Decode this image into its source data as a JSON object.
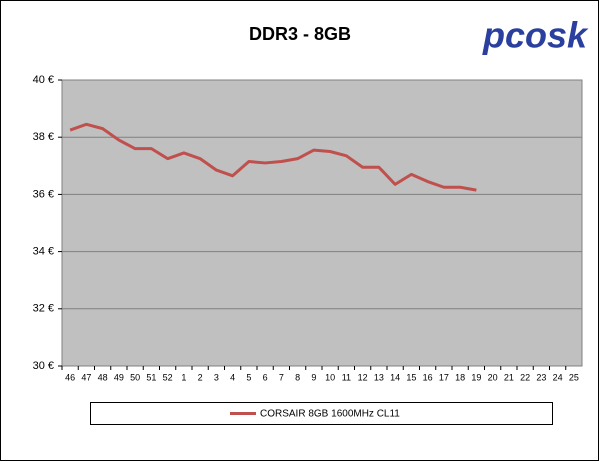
{
  "chart_data": {
    "type": "line",
    "title": "DDR3 - 8GB",
    "logo": "pcosk",
    "categories": [
      "46",
      "47",
      "48",
      "49",
      "50",
      "51",
      "52",
      "1",
      "2",
      "3",
      "4",
      "5",
      "6",
      "7",
      "8",
      "9",
      "10",
      "11",
      "12",
      "13",
      "14",
      "15",
      "16",
      "17",
      "18",
      "19",
      "20",
      "21",
      "22",
      "23",
      "24",
      "25"
    ],
    "series": [
      {
        "name": "CORSAIR 8GB 1600MHz CL11",
        "color": "#c0504d",
        "values": [
          38.25,
          38.45,
          38.3,
          37.9,
          37.6,
          37.6,
          37.25,
          37.45,
          37.25,
          36.85,
          36.65,
          37.15,
          37.1,
          37.15,
          37.25,
          37.55,
          37.5,
          37.35,
          36.95,
          36.95,
          36.35,
          36.7,
          36.45,
          36.25,
          36.25,
          36.15,
          null,
          null,
          null,
          null,
          null,
          null
        ]
      }
    ],
    "ylim": [
      30,
      40
    ],
    "yticks": [
      {
        "value": 30,
        "label": "30 €"
      },
      {
        "value": 32,
        "label": "32 €"
      },
      {
        "value": 34,
        "label": "34 €"
      },
      {
        "value": 36,
        "label": "36 €"
      },
      {
        "value": 38,
        "label": "38 €"
      },
      {
        "value": 40,
        "label": "40 €"
      }
    ],
    "grid": true,
    "legend": "bottom"
  }
}
